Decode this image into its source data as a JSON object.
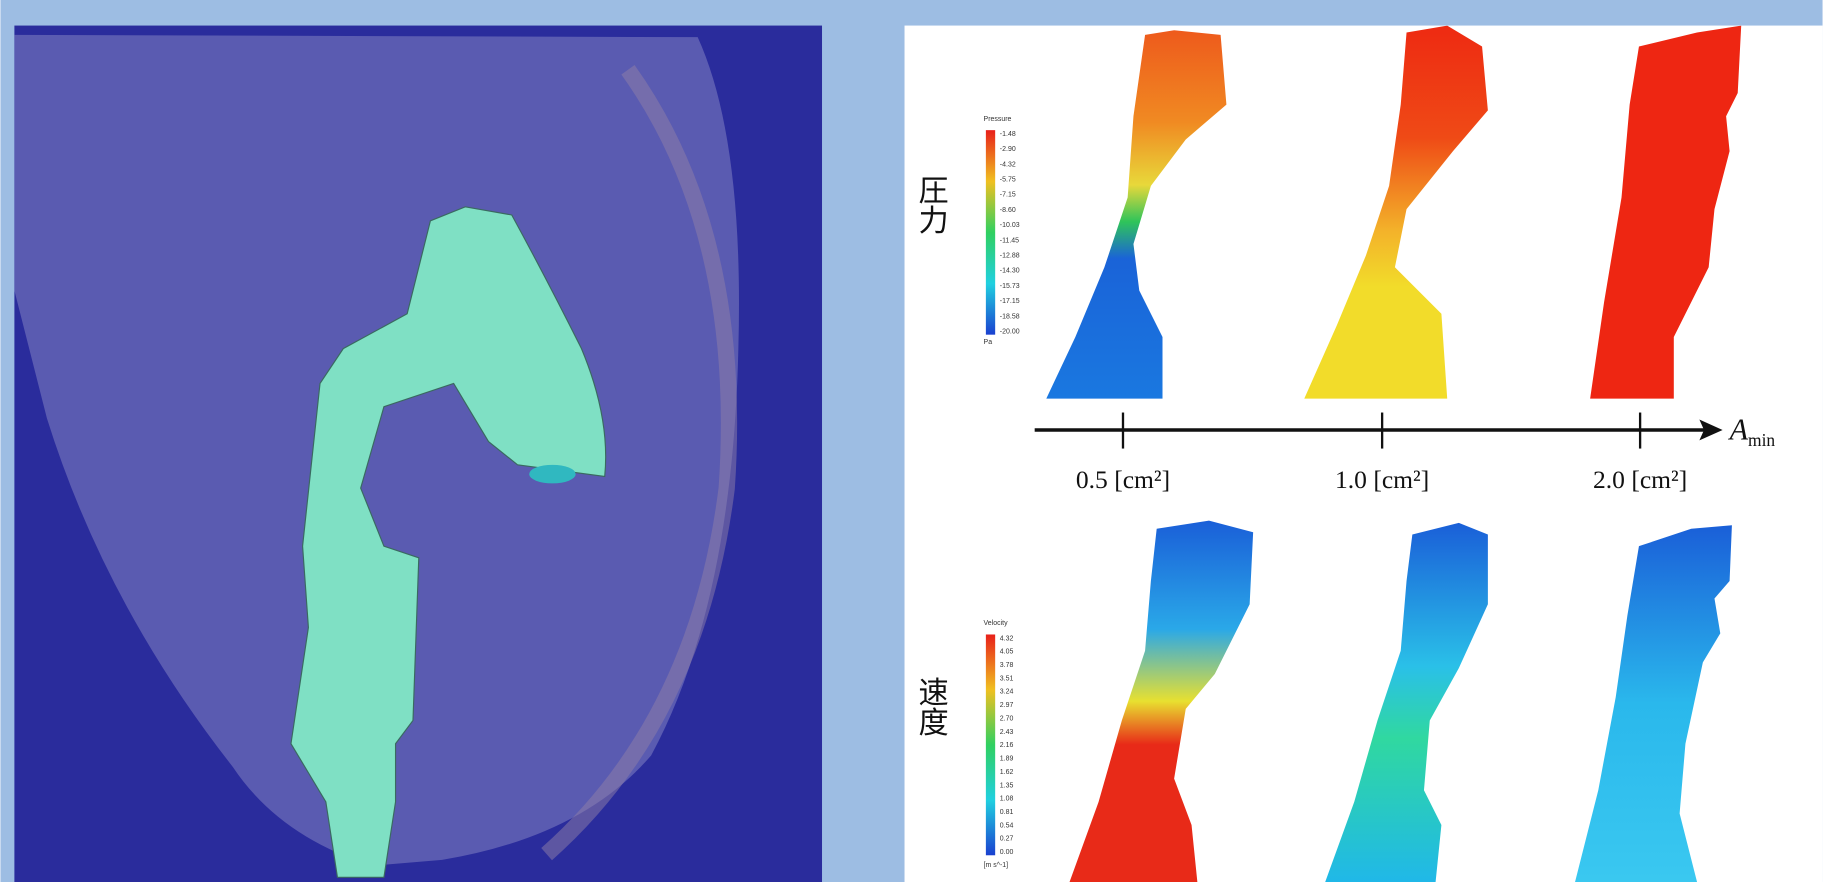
{
  "pressure_row": {
    "label": "圧力",
    "legend": {
      "title": "Pressure",
      "unit": "Pa",
      "ticks": [
        "-1.48",
        "-2.90",
        "-4.32",
        "-5.75",
        "-7.15",
        "-8.60",
        "-10.03",
        "-11.45",
        "-12.88",
        "-14.30",
        "-15.73",
        "-17.15",
        "-18.58",
        "-20.00"
      ]
    }
  },
  "axis": {
    "symbol": "A",
    "subscript": "min",
    "ticks": [
      "0.5 [cm²]",
      "1.0 [cm²]",
      "2.0 [cm²]"
    ]
  },
  "velocity_row": {
    "label": "速度",
    "legend": {
      "title": "Velocity",
      "unit": "[m s^-1]",
      "ticks": [
        "4.32",
        "4.05",
        "3.78",
        "3.51",
        "3.24",
        "2.97",
        "2.70",
        "2.43",
        "2.16",
        "1.89",
        "1.62",
        "1.35",
        "1.08",
        "0.81",
        "0.54",
        "0.27",
        "0.00"
      ]
    }
  }
}
